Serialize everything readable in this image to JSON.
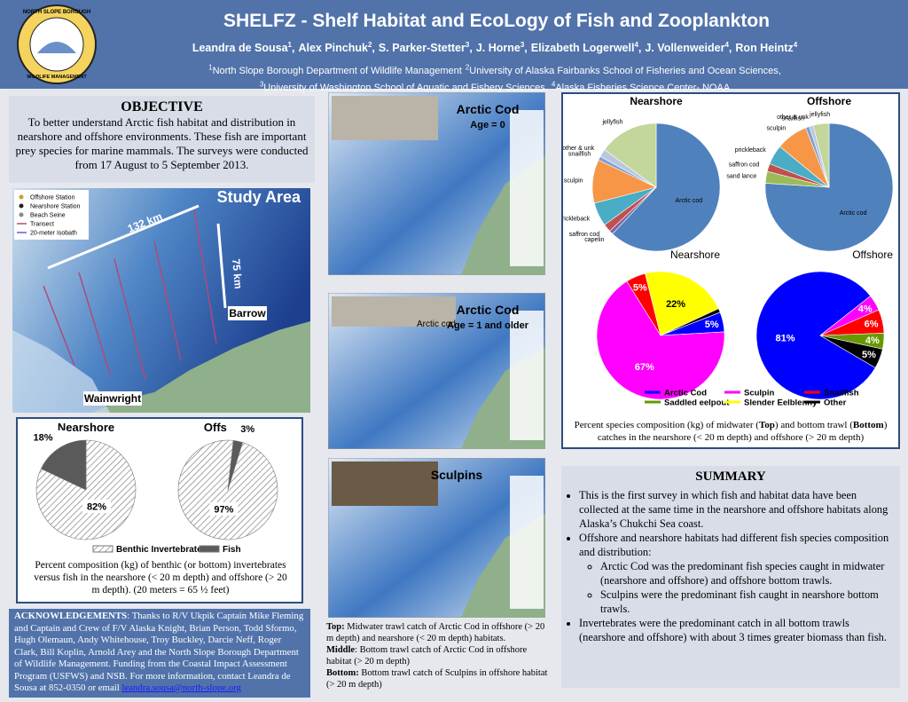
{
  "header": {
    "title": "SHELFZ - Shelf Habitat and EcoLogy of Fish and Zooplankton",
    "authors": [
      {
        "name": "Leandra de Sousa",
        "sup": "1",
        "punct": ","
      },
      {
        "name": "Alex Pinchuk",
        "sup": "2",
        "punct": ","
      },
      {
        "name": "S. Parker-Stetter",
        "sup": "3",
        "punct": ","
      },
      {
        "name": "J. Horne",
        "sup": "3",
        "punct": ","
      },
      {
        "name": "Elizabeth Logerwell",
        "sup": "4",
        "punct": ","
      },
      {
        "name": "J. Vollenweider",
        "sup": "4",
        "punct": ","
      },
      {
        "name": "Ron Heintz",
        "sup": "4"
      }
    ],
    "affiliation_lines": [
      [
        {
          "sup": "1",
          "text": "North Slope Borough Department of Wildlife Management"
        },
        {
          "sup": "2",
          "text": "University of Alaska Fairbanks School of Fisheries and Ocean Sciences,"
        }
      ],
      [
        {
          "sup": "3",
          "text": "University of Washington School of Aquatic and Fishery Sciences,"
        },
        {
          "sup": "4",
          "text": "Alaska Fisheries Science Center- NOAA"
        }
      ]
    ],
    "logo": {
      "top": "NORTH SLOPE BOROUGH",
      "bottom": "WILDLIFE MANAGEMENT"
    }
  },
  "objective": {
    "heading": "OBJECTIVE",
    "text": "To better understand Arctic fish habitat and distribution in nearshore and offshore environments. These fish are important prey species for marine mammals. The surveys were conducted from 17 August to 5 September 2013."
  },
  "study_area": {
    "title": "Study Area",
    "distance_1": "132 km",
    "distance_2": "75 km",
    "places": [
      "Barrow",
      "Wainwright"
    ],
    "legend": [
      "Offshore Station",
      "Nearshore Station",
      "Beach Seine",
      "Transect",
      "20-meter Isobath"
    ]
  },
  "benthic": {
    "categories": [
      "Benthic Invertebrates",
      "Fish"
    ],
    "colors": [
      "#ffffff",
      "#5a5a5a"
    ],
    "hatched": [
      true,
      false
    ],
    "pies": [
      {
        "type": "pie",
        "title": "Nearshore",
        "values": [
          82,
          18
        ],
        "value_labels": [
          "82%",
          "18%"
        ]
      },
      {
        "type": "pie",
        "title": "Offshore",
        "values": [
          97,
          3
        ],
        "value_labels": [
          "97%",
          "3%"
        ]
      }
    ],
    "caption": "Percent composition (kg) of benthic (or bottom) invertebrates versus fish in the nearshore (< 20 m depth) and offshore (> 20 m depth). (20 meters = 65 ½ feet)"
  },
  "acknowledgements": {
    "heading": "ACKNOWLEDGEMENTS",
    "text": ": Thanks to R/V Ukpik Captain Mike Fleming and Captain and Crew of F/V Alaska Knight, Brian Person, Todd Sformo, Hugh Olemaun, Andy Whitehouse, Troy Buckley, Darcie Neff, Roger Clark, Bill Koplin, Arnold Arey and the North Slope Borough Department of Wildlife Management. Funding from the Coastal Impact Assessment Program (USFWS) and NSB. For more information, contact Leandra de Sousa at 852-0350 or email ",
    "email": "leandra.sousa@north-slope.org"
  },
  "maps": [
    {
      "title": "Arctic Cod",
      "subtitle": "Age = 0"
    },
    {
      "title": "Arctic Cod",
      "subtitle": "Age = 1 and older",
      "photo_label": "Arctic cod"
    },
    {
      "title": "Sculpins"
    }
  ],
  "map_caption": [
    {
      "label": "Top:",
      "text": " Midwater trawl catch of Arctic Cod in offshore (> 20 m depth) and nearshore (< 20 m depth) habitats."
    },
    {
      "label": "Middle",
      "text": ": Bottom trawl catch of Arctic Cod in offshore habitat (> 20 m depth)"
    },
    {
      "label": "Bottom:",
      "text": " Bottom trawl catch of Sculpins in offshore habitat (> 20 m depth)"
    }
  ],
  "species": {
    "top": [
      {
        "type": "pie",
        "title": "Nearshore",
        "inner_label": "Nearshore",
        "categories": [
          "Arctic cod",
          "capelin",
          "saffron cod",
          "prickleback",
          "sculpin",
          "snailfish",
          "other & unk",
          "jellyfish"
        ],
        "values": [
          62,
          1,
          2,
          6,
          11,
          1,
          2,
          15
        ],
        "colors": [
          "#4f81bd",
          "#8064a2",
          "#c0504d",
          "#4bacc6",
          "#f79646",
          "#7f9fcf",
          "#b9c8e0",
          "#c3d69b"
        ]
      },
      {
        "type": "pie",
        "title": "Offshore",
        "inner_label": "Offshore",
        "categories": [
          "Arctic cod",
          "sand lance",
          "saffron cod",
          "prickleback",
          "sculpin",
          "snailfish",
          "other & unk",
          "jellyfish"
        ],
        "values": [
          76,
          3,
          2,
          5,
          8,
          1,
          1,
          4
        ],
        "colors": [
          "#4f81bd",
          "#9bbb59",
          "#c0504d",
          "#4bacc6",
          "#f79646",
          "#7f9fcf",
          "#b9c8e0",
          "#c3d69b"
        ]
      }
    ],
    "bottom": {
      "categories": [
        "Arctic Cod",
        "Sculpin",
        "Snailfish",
        "Saddled eelpout",
        "Slender Eelblenny",
        "Other"
      ],
      "colors": [
        "#0000ff",
        "#ff00ff",
        "#ff0000",
        "#669900",
        "#ffff00",
        "#000000"
      ],
      "pies": [
        {
          "type": "pie",
          "values": [
            5,
            67,
            5,
            0,
            22,
            1
          ],
          "value_labels": [
            "5%",
            "67%",
            "5%",
            null,
            "22%",
            null
          ]
        },
        {
          "type": "pie",
          "values": [
            81,
            4,
            6,
            4,
            0,
            5
          ],
          "value_labels": [
            "81%",
            "4%",
            "6%",
            "4%",
            null,
            "5%"
          ]
        }
      ]
    },
    "caption_parts": [
      "Percent species composition (kg) of midwater (",
      "Top",
      ") and bottom trawl (",
      "Bottom",
      ") catches in the nearshore (< 20 m depth) and offshore (> 20 m depth)"
    ]
  },
  "summary": {
    "heading": "SUMMARY",
    "bullets": [
      {
        "text": "This is the first survey in which fish and habitat data have been collected at the same time in the nearshore and offshore habitats along Alaska’s Chukchi Sea coast."
      },
      {
        "text": "Offshore and nearshore habitats had different fish species composition and distribution:",
        "sub": [
          "Arctic Cod was the predominant fish species caught in midwater (nearshore and offshore) and offshore bottom trawls.",
          "Sculpins were the predominant fish caught in nearshore bottom trawls."
        ]
      },
      {
        "text": "Invertebrates were the predominant catch in all bottom trawls (nearshore and offshore) with about 3 times greater biomass than fish."
      }
    ]
  }
}
